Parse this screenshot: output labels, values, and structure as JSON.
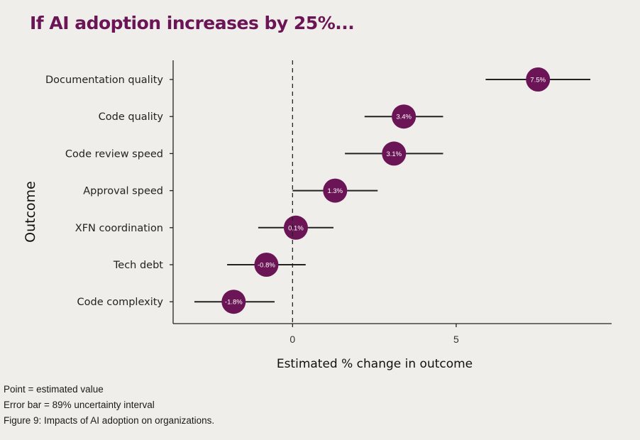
{
  "title": "If AI adoption increases by 25%...",
  "chart_data": {
    "type": "forest",
    "xlabel": "Estimated % change in outcome",
    "ylabel": "Outcome",
    "xlim": [
      -3.65,
      9.75
    ],
    "xticks": [
      0,
      5
    ],
    "reference_line": 0,
    "grid": false,
    "point_color": "#6b1556",
    "categories": [
      "Documentation quality",
      "Code quality",
      "Code review speed",
      "Approval speed",
      "XFN coordination",
      "Tech debt",
      "Code complexity"
    ],
    "values": [
      7.5,
      3.4,
      3.1,
      1.3,
      0.1,
      -0.8,
      -1.8
    ],
    "labels": [
      "7.5%",
      "3.4%",
      "3.1%",
      "1.3%",
      "0.1%",
      "-0.8%",
      "-1.8%"
    ],
    "lower": [
      5.9,
      2.2,
      1.6,
      0.0,
      -1.05,
      -2.0,
      -3.0
    ],
    "upper": [
      9.1,
      4.6,
      4.6,
      2.6,
      1.25,
      0.4,
      -0.55
    ]
  },
  "notes": [
    "Point = estimated value",
    "Error bar = 89% uncertainty interval",
    "Figure 9: Impacts of AI adoption on organizations."
  ]
}
